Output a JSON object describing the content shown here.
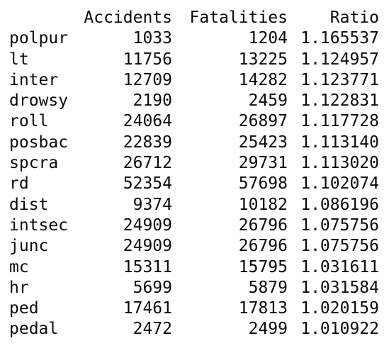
{
  "table": {
    "columns": [
      "Accidents",
      "Fatalities",
      "Ratio"
    ],
    "rows": [
      {
        "name": "polpur",
        "accidents": "1033",
        "fatalities": "1204",
        "ratio": "1.165537"
      },
      {
        "name": "lt",
        "accidents": "11756",
        "fatalities": "13225",
        "ratio": "1.124957"
      },
      {
        "name": "inter",
        "accidents": "12709",
        "fatalities": "14282",
        "ratio": "1.123771"
      },
      {
        "name": "drowsy",
        "accidents": "2190",
        "fatalities": "2459",
        "ratio": "1.122831"
      },
      {
        "name": "roll",
        "accidents": "24064",
        "fatalities": "26897",
        "ratio": "1.117728"
      },
      {
        "name": "posbac",
        "accidents": "22839",
        "fatalities": "25423",
        "ratio": "1.113140"
      },
      {
        "name": "spcra",
        "accidents": "26712",
        "fatalities": "29731",
        "ratio": "1.113020"
      },
      {
        "name": "rd",
        "accidents": "52354",
        "fatalities": "57698",
        "ratio": "1.102074"
      },
      {
        "name": "dist",
        "accidents": "9374",
        "fatalities": "10182",
        "ratio": "1.086196"
      },
      {
        "name": "intsec",
        "accidents": "24909",
        "fatalities": "26796",
        "ratio": "1.075756"
      },
      {
        "name": "junc",
        "accidents": "24909",
        "fatalities": "26796",
        "ratio": "1.075756"
      },
      {
        "name": "mc",
        "accidents": "15311",
        "fatalities": "15795",
        "ratio": "1.031611"
      },
      {
        "name": "hr",
        "accidents": "5699",
        "fatalities": "5879",
        "ratio": "1.031584"
      },
      {
        "name": "ped",
        "accidents": "17461",
        "fatalities": "17813",
        "ratio": "1.020159"
      },
      {
        "name": "pedal",
        "accidents": "2472",
        "fatalities": "2499",
        "ratio": "1.010922"
      }
    ]
  }
}
